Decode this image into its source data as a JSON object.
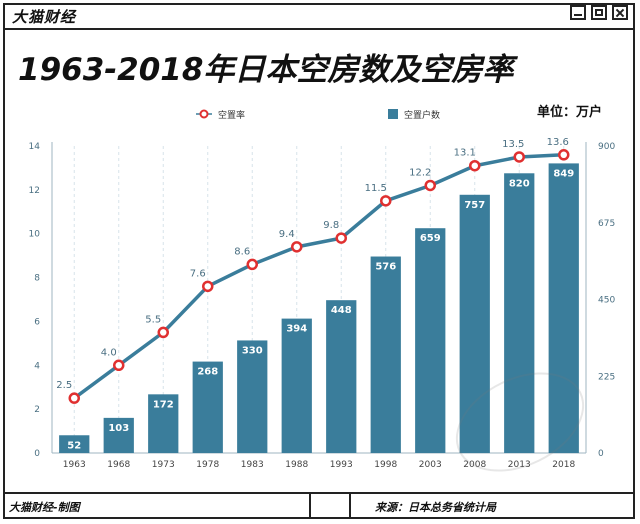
{
  "window": {
    "brand": "大猫财经"
  },
  "footer": {
    "credit": "大猫财经-制图",
    "source": "来源：日本总务省统计局"
  },
  "unit_label": "单位：万户",
  "colors": {
    "bar": "#3a7d9b",
    "line": "#3a7d9b",
    "marker_stroke": "#e03030",
    "text": "#4a6f82"
  },
  "chart_data": {
    "type": "bar",
    "title": "1963-2018年日本空房数及空房率",
    "categories": [
      "1963",
      "1968",
      "1973",
      "1978",
      "1983",
      "1988",
      "1993",
      "1998",
      "2003",
      "2008",
      "2013",
      "2018"
    ],
    "series": [
      {
        "name": "空置户数",
        "type": "bar",
        "axis": "right",
        "values": [
          52,
          103,
          172,
          268,
          330,
          394,
          448,
          576,
          659,
          757,
          820,
          849
        ]
      },
      {
        "name": "空置率",
        "type": "line",
        "axis": "left",
        "values": [
          2.5,
          4.0,
          5.5,
          7.6,
          8.6,
          9.4,
          9.8,
          11.5,
          12.2,
          13.1,
          13.5,
          13.6
        ]
      }
    ],
    "left_axis": {
      "ylim": [
        0,
        14
      ],
      "ticks": [
        0,
        2,
        4,
        6,
        8,
        10,
        12,
        14
      ]
    },
    "right_axis": {
      "ylim": [
        0,
        900
      ],
      "ticks": [
        0,
        225,
        450,
        675,
        900
      ]
    },
    "line_labels": [
      "2.5",
      "4.0",
      "5.5",
      "7.6",
      "8.6",
      "9.4",
      "9.8",
      "11.5",
      "12.2",
      "13.1",
      "13.5",
      "13.6"
    ],
    "legend_position": "top"
  }
}
